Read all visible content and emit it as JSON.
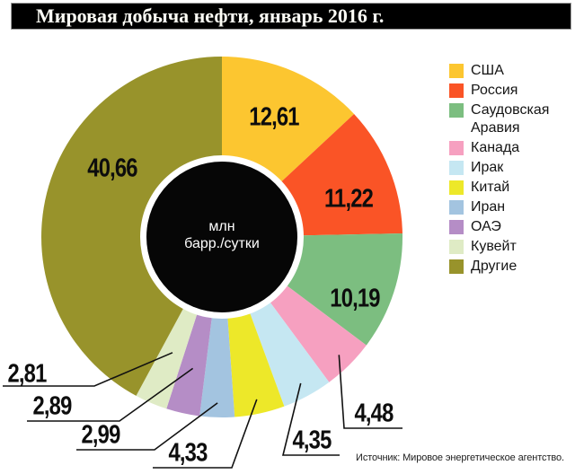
{
  "title": "Мировая добыча нефти, январь 2016 г.",
  "center_label": {
    "line1": "млн",
    "line2": "барр./сутки"
  },
  "source": "Источник: Мировое энергетическое агентство.",
  "chart_data": {
    "type": "pie",
    "title": "Мировая добыча нефти, январь 2016 г.",
    "unit": "млн барр./сутки",
    "donut": true,
    "start_angle_deg": 0,
    "direction": "clockwise",
    "legend_position": "right",
    "total": 96.53,
    "slices": [
      {
        "label": "США",
        "value": 12.61,
        "display": "12,61",
        "color": "#fcc630"
      },
      {
        "label": "Россия",
        "value": 11.22,
        "display": "11,22",
        "color": "#fa5426"
      },
      {
        "label": "Саудовская Аравия",
        "value": 10.19,
        "display": "10,19",
        "color": "#7cbe80"
      },
      {
        "label": "Канада",
        "value": 4.48,
        "display": "4,48",
        "color": "#f6a0c0"
      },
      {
        "label": "Ирак",
        "value": 4.35,
        "display": "4,35",
        "color": "#c5e7f2"
      },
      {
        "label": "Китай",
        "value": 4.33,
        "display": "4,33",
        "color": "#ede829"
      },
      {
        "label": "Иран",
        "value": 2.99,
        "display": "2,99",
        "color": "#a3c4e0"
      },
      {
        "label": "ОАЭ",
        "value": 2.89,
        "display": "2,89",
        "color": "#b58dc6"
      },
      {
        "label": "Кувейт",
        "value": 2.81,
        "display": "2,81",
        "color": "#dfebc5"
      },
      {
        "label": "Другие",
        "value": 40.66,
        "display": "40,66",
        "color": "#98932b"
      }
    ]
  }
}
